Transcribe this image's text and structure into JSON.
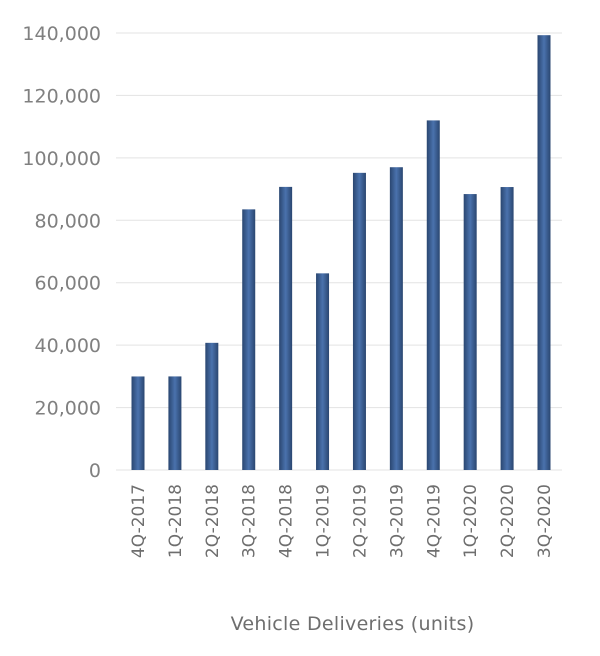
{
  "chart_data": {
    "type": "bar",
    "title": "",
    "xlabel": "Vehicle Deliveries (units)",
    "ylabel": "",
    "ylim": [
      0,
      140000
    ],
    "yticks": [
      "0",
      "20,000",
      "40,000",
      "60,000",
      "80,000",
      "100,000",
      "120,000",
      "140,000"
    ],
    "categories": [
      "4Q-2017",
      "1Q-2018",
      "2Q-2018",
      "3Q-2018",
      "4Q-2018",
      "1Q-2019",
      "2Q-2019",
      "3Q-2019",
      "4Q-2019",
      "1Q-2020",
      "2Q-2020",
      "3Q-2020"
    ],
    "values": [
      29967,
      29980,
      40740,
      83500,
      90700,
      63000,
      95200,
      97000,
      112000,
      88400,
      90650,
      139300
    ],
    "grid": true,
    "colors": {
      "bar_edge": "#2a4670",
      "bar_center": "#4a72ad",
      "grid": "#e3e3e3"
    }
  }
}
